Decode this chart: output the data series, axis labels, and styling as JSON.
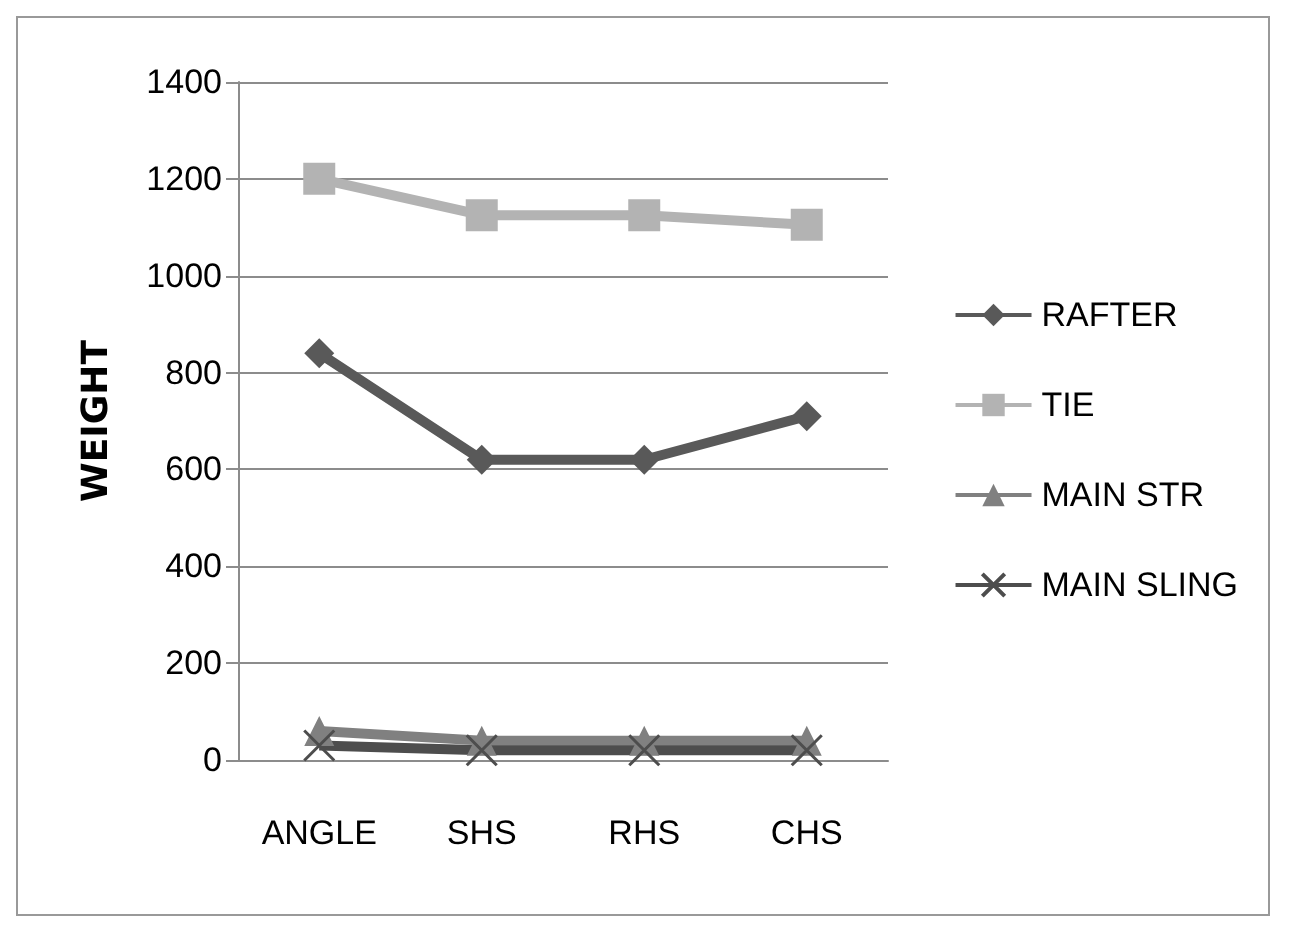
{
  "chart_data": {
    "type": "line",
    "ylabel": "WEIGHT",
    "categories": [
      "ANGLE",
      "SHS",
      "RHS",
      "CHS"
    ],
    "series": [
      {
        "name": "RAFTER",
        "color": "#595959",
        "marker": "diamond",
        "values": [
          840,
          620,
          620,
          710
        ]
      },
      {
        "name": "TIE",
        "color": "#b3b3b3",
        "marker": "square",
        "values": [
          1200,
          1125,
          1125,
          1105
        ]
      },
      {
        "name": "MAIN STR",
        "color": "#808080",
        "marker": "triangle",
        "values": [
          60,
          40,
          40,
          40
        ]
      },
      {
        "name": "MAIN SLING",
        "color": "#4d4d4d",
        "marker": "cross",
        "values": [
          30,
          20,
          20,
          20
        ]
      }
    ],
    "ylim": [
      0,
      1400
    ],
    "yticks": [
      0,
      200,
      400,
      600,
      800,
      1000,
      1200,
      1400
    ],
    "grid": "y",
    "legend": "right"
  }
}
